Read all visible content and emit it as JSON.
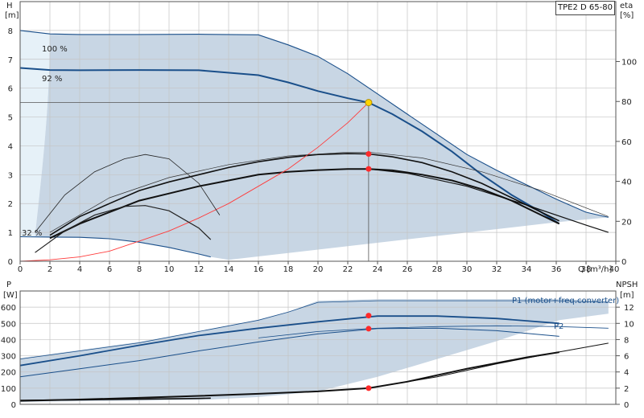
{
  "title": "TPE2 D 65-80",
  "top_axes": {
    "y_left_label_1": "H",
    "y_left_label_2": "[m]",
    "y_right_label_1": "eta",
    "y_right_label_2": "[%]",
    "x_label": "Q [m³/h]"
  },
  "bottom_axes": {
    "y_left_label_1": "P",
    "y_left_label_2": "[W]",
    "y_right_label_1": "NPSH",
    "y_right_label_2": "[m]"
  },
  "colors": {
    "band": "#c8d6e4",
    "band_light": "#e6f1f8",
    "curve_dark": "#1a4f8a",
    "system": "#ff3b3b",
    "grid": "#c4c4c4",
    "op_point": "#ffd400"
  },
  "chart_data": [
    {
      "type": "line",
      "title": "TPE2 D 65-80",
      "xlabel": "Q [m³/h]",
      "ylabel": "H [m]",
      "y2label": "eta [%]",
      "xlim": [
        0,
        40
      ],
      "ylim": [
        0,
        9
      ],
      "y2lim": [
        0,
        130
      ],
      "x_ticks": [
        0,
        2,
        4,
        6,
        8,
        10,
        12,
        14,
        16,
        18,
        20,
        22,
        24,
        26,
        28,
        30,
        32,
        34,
        36,
        38,
        40
      ],
      "y_ticks": [
        0,
        1,
        2,
        3,
        4,
        5,
        6,
        7,
        8
      ],
      "y2_ticks": [
        0,
        20,
        40,
        60,
        80,
        100
      ],
      "grid": true,
      "curve_labels": [
        "100 %",
        "92 %",
        "32 %"
      ],
      "series": [
        {
          "name": "100 %",
          "x": [
            0,
            2,
            4,
            8,
            12,
            16,
            18,
            20,
            22,
            24,
            26,
            28,
            30,
            32,
            34,
            36,
            38,
            39.5
          ],
          "y": [
            8.0,
            7.88,
            7.86,
            7.86,
            7.87,
            7.85,
            7.5,
            7.1,
            6.5,
            5.8,
            5.1,
            4.4,
            3.7,
            3.15,
            2.65,
            2.15,
            1.7,
            1.52
          ]
        },
        {
          "name": "92 %",
          "x": [
            0,
            2,
            4,
            8,
            12,
            16,
            18,
            20,
            22,
            23.4,
            25,
            27,
            29,
            31,
            33,
            35,
            36.2
          ],
          "y": [
            6.7,
            6.63,
            6.62,
            6.63,
            6.62,
            6.45,
            6.2,
            5.9,
            5.65,
            5.5,
            5.1,
            4.5,
            3.8,
            3.0,
            2.3,
            1.7,
            1.3
          ]
        },
        {
          "name": "32 %",
          "x": [
            0,
            2,
            4,
            6,
            8,
            10,
            12,
            12.8
          ],
          "y": [
            0.85,
            0.84,
            0.83,
            0.78,
            0.66,
            0.48,
            0.25,
            0.15
          ]
        },
        {
          "name": "",
          "x": [
            2,
            4,
            6,
            8,
            10,
            12,
            14,
            16,
            18,
            20,
            22,
            23.4,
            25,
            27,
            29,
            31,
            33,
            35,
            36.2
          ],
          "y": [
            0.8,
            1.3,
            1.7,
            2.1,
            2.35,
            2.6,
            2.8,
            3.0,
            3.1,
            3.16,
            3.2,
            3.2,
            3.15,
            3.0,
            2.8,
            2.5,
            2.1,
            1.6,
            1.3
          ]
        },
        {
          "name": "",
          "x": [
            2,
            4,
            6,
            8,
            10,
            12,
            14,
            16,
            18,
            20,
            22,
            23.4,
            25,
            27,
            29,
            31,
            33,
            35,
            36.2
          ],
          "y": [
            0.9,
            1.55,
            2.0,
            2.45,
            2.75,
            3.0,
            3.25,
            3.45,
            3.6,
            3.7,
            3.73,
            3.72,
            3.62,
            3.42,
            3.1,
            2.7,
            2.2,
            1.7,
            1.4
          ]
        },
        {
          "name": "",
          "x": [
            0,
            2,
            4,
            6,
            8,
            10,
            12,
            14,
            16,
            18,
            20,
            22,
            23.4
          ],
          "y": [
            0,
            0.05,
            0.15,
            0.35,
            0.7,
            1.05,
            1.5,
            2.0,
            2.6,
            3.2,
            3.95,
            4.8,
            5.5
          ]
        },
        {
          "name": "",
          "x": [
            1,
            3,
            5,
            7,
            8.4,
            10,
            12,
            13.4
          ],
          "y": [
            1.0,
            2.3,
            3.1,
            3.55,
            3.7,
            3.55,
            2.7,
            1.6
          ]
        },
        {
          "name": "",
          "x": [
            1,
            3,
            5,
            7,
            8.4,
            10,
            12,
            12.8
          ],
          "y": [
            0.3,
            1.05,
            1.6,
            1.9,
            1.93,
            1.75,
            1.15,
            0.75
          ]
        }
      ],
      "annotations": [
        {
          "label": "",
          "x": 23.4,
          "y": 5.5,
          "kind": "operating-point"
        },
        {
          "label": "",
          "x": 23.4,
          "y": 3.72,
          "kind": "duty-point"
        },
        {
          "label": "",
          "x": 23.4,
          "y": 3.2,
          "kind": "duty-point"
        }
      ]
    },
    {
      "type": "line",
      "ylabel": "P [W]",
      "y2label": "NPSH [m]",
      "xlim": [
        0,
        40
      ],
      "ylim": [
        0,
        700
      ],
      "y2lim": [
        0,
        14
      ],
      "y_ticks": [
        0,
        100,
        200,
        300,
        400,
        500,
        600
      ],
      "y2_ticks": [
        0,
        2,
        4,
        6,
        8,
        10,
        12
      ],
      "grid": true,
      "legend": [
        "P1 (motor+freq.converter)",
        "P2"
      ],
      "series": [
        {
          "name": "P1 (motor+freq.converter)",
          "x": [
            0,
            4,
            8,
            12,
            16,
            20,
            24,
            28,
            32,
            36.2
          ],
          "y": [
            240,
            300,
            365,
            425,
            470,
            510,
            545,
            545,
            530,
            500
          ]
        },
        {
          "name": "P2",
          "x": [
            0,
            4,
            8,
            12,
            16,
            20,
            24,
            28,
            32,
            36.2
          ],
          "y": [
            170,
            220,
            270,
            330,
            385,
            435,
            468,
            470,
            455,
            420
          ]
        },
        {
          "name": "",
          "x": [
            0,
            4,
            8,
            12,
            16,
            20,
            22,
            23.4,
            26,
            30,
            34,
            36.2
          ],
          "y": [
            22,
            30,
            40,
            52,
            65,
            80,
            92,
            100,
            140,
            220,
            290,
            322
          ]
        },
        {
          "name": "",
          "x": [
            0,
            4,
            8,
            12,
            12.8
          ],
          "y": [
            25,
            28,
            32,
            36,
            38
          ]
        }
      ],
      "annotations": [
        {
          "label": "",
          "x": 23.4,
          "y": 548,
          "kind": "duty-point"
        },
        {
          "label": "",
          "x": 23.4,
          "y": 467,
          "kind": "duty-point"
        },
        {
          "label": "",
          "x": 23.4,
          "y": 100,
          "kind": "duty-point"
        }
      ]
    }
  ]
}
